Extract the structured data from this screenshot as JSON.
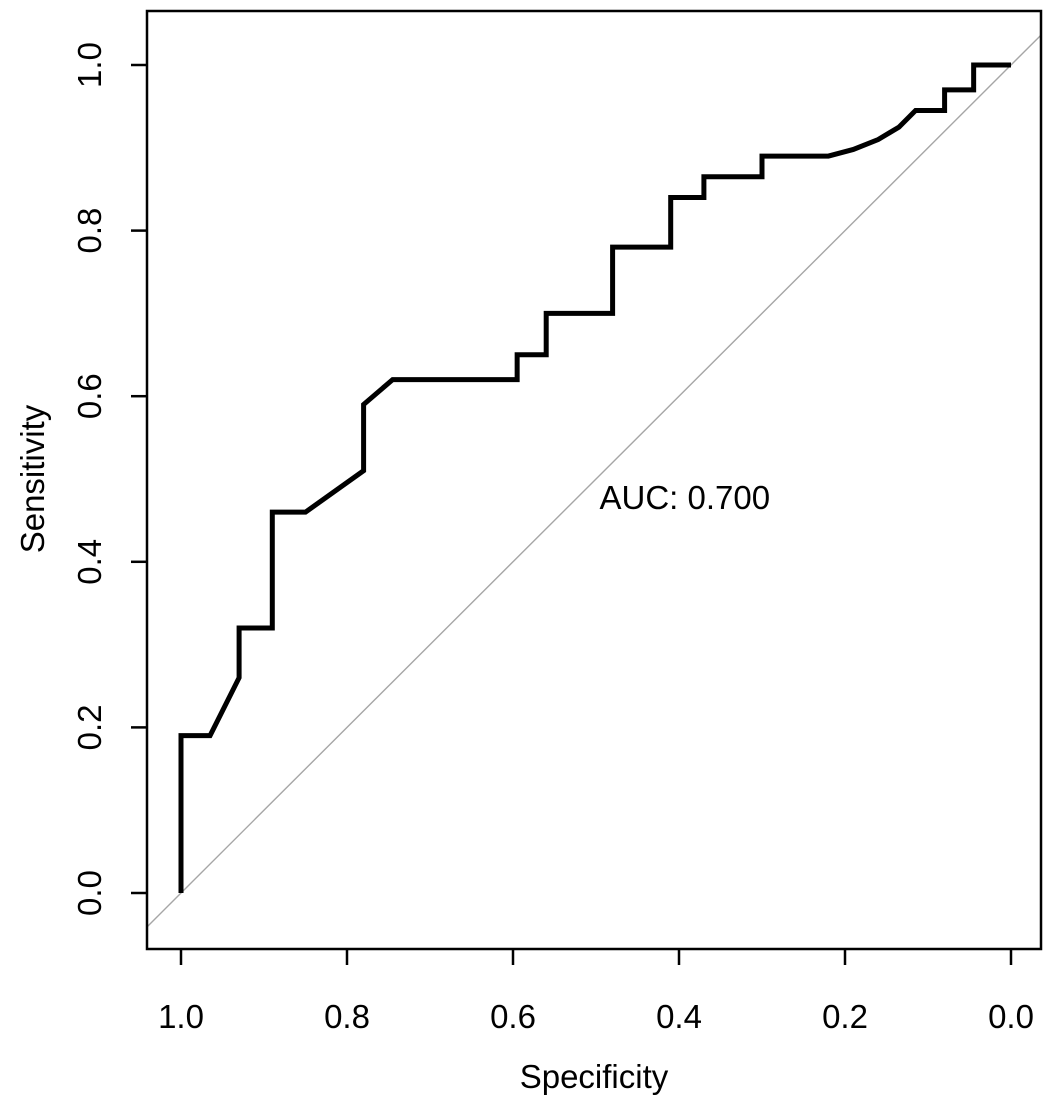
{
  "chart_data": {
    "type": "line",
    "subtype": "roc-curve",
    "title": "",
    "xlabel": "Specificity",
    "ylabel": "Sensitivity",
    "x_axis": {
      "tick_labels": [
        "1.0",
        "0.8",
        "0.6",
        "0.4",
        "0.2",
        "0.0"
      ],
      "range": [
        1.0,
        0.0
      ],
      "reversed": true
    },
    "y_axis": {
      "tick_labels": [
        "0.0",
        "0.2",
        "0.4",
        "0.6",
        "0.8",
        "1.0"
      ],
      "range": [
        0.0,
        1.0
      ],
      "label_rotation_deg": 90
    },
    "grid": false,
    "legend": "none",
    "auc": 0.7,
    "annotation": {
      "text": "AUC: 0.700",
      "specificity": 0.393,
      "sensitivity": 0.478
    },
    "series": [
      {
        "name": "roc-curve",
        "color": "#000000",
        "width": 5,
        "points_spec_sens": [
          [
            1.0,
            0.0
          ],
          [
            1.0,
            0.19
          ],
          [
            0.965,
            0.19
          ],
          [
            0.96,
            0.2
          ],
          [
            0.93,
            0.26
          ],
          [
            0.93,
            0.32
          ],
          [
            0.89,
            0.32
          ],
          [
            0.89,
            0.46
          ],
          [
            0.85,
            0.46
          ],
          [
            0.78,
            0.51
          ],
          [
            0.78,
            0.59
          ],
          [
            0.745,
            0.62
          ],
          [
            0.595,
            0.62
          ],
          [
            0.595,
            0.65
          ],
          [
            0.56,
            0.65
          ],
          [
            0.56,
            0.7
          ],
          [
            0.48,
            0.7
          ],
          [
            0.48,
            0.78
          ],
          [
            0.41,
            0.78
          ],
          [
            0.41,
            0.84
          ],
          [
            0.37,
            0.84
          ],
          [
            0.37,
            0.865
          ],
          [
            0.3,
            0.865
          ],
          [
            0.3,
            0.89
          ],
          [
            0.22,
            0.89
          ],
          [
            0.19,
            0.898
          ],
          [
            0.16,
            0.91
          ],
          [
            0.135,
            0.925
          ],
          [
            0.115,
            0.945
          ],
          [
            0.08,
            0.945
          ],
          [
            0.08,
            0.97
          ],
          [
            0.045,
            0.97
          ],
          [
            0.045,
            1.0
          ],
          [
            0.0,
            1.0
          ]
        ]
      },
      {
        "name": "chance-diagonal",
        "color": "#a6a6a6",
        "width": 1.4,
        "points_spec_sens": [
          [
            1.041,
            -0.041
          ],
          [
            -0.036,
            1.036
          ]
        ]
      }
    ],
    "colors": {
      "background": "#ffffff",
      "axis": "#000000",
      "text": "#000000",
      "curve": "#000000",
      "diagonal": "#a6a6a6"
    }
  }
}
